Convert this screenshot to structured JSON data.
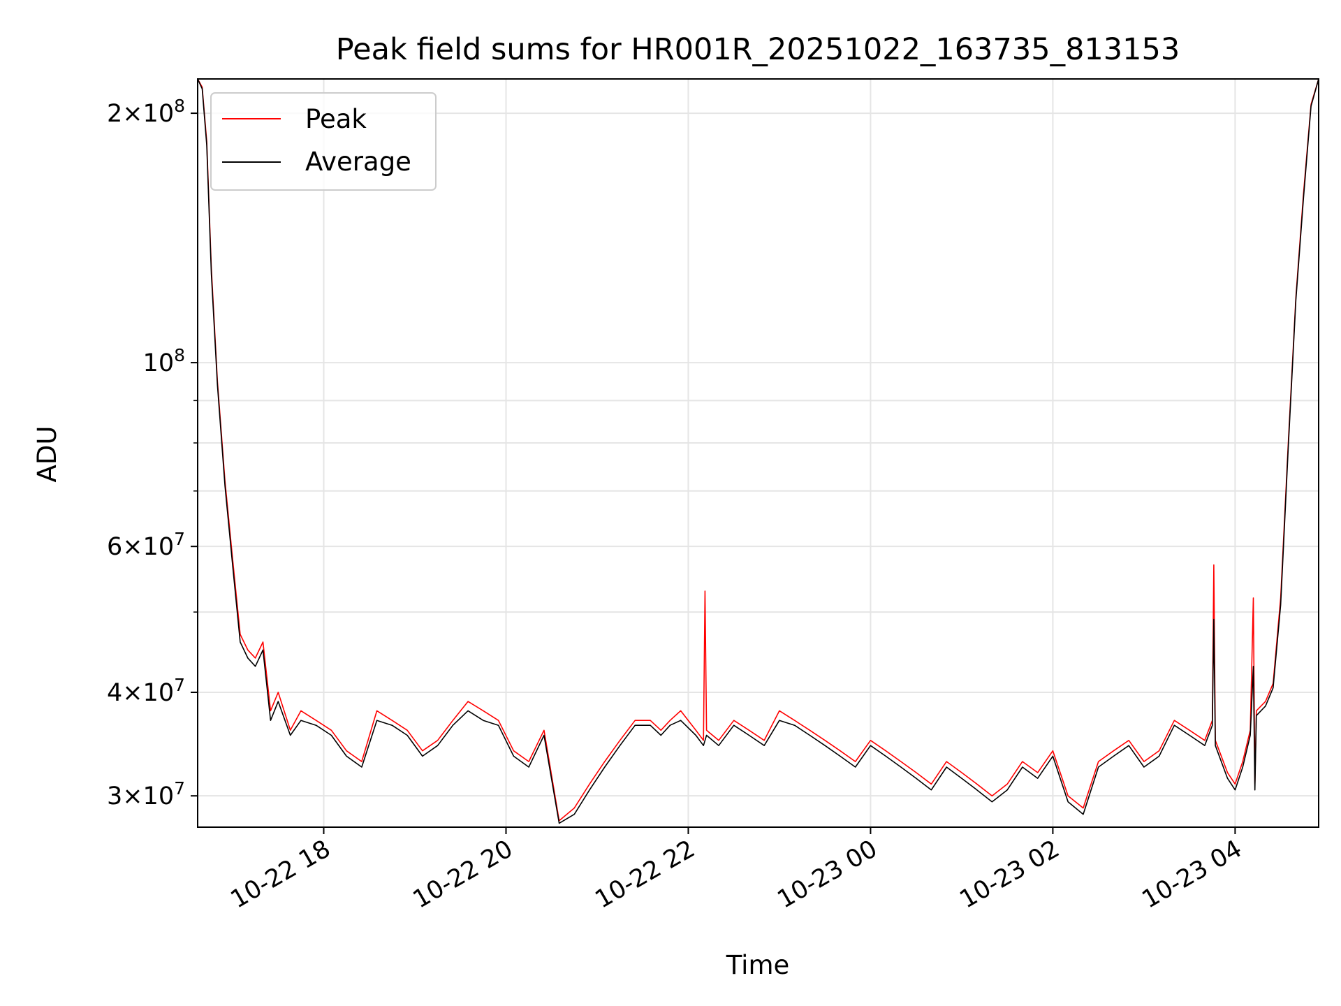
{
  "chart_data": {
    "type": "line",
    "title": "Peak field sums for HR001R_20251022_163735_813153",
    "xlabel": "Time",
    "ylabel": "ADU",
    "yscale": "log",
    "ylim": [
      27500000,
      220000000
    ],
    "xlim": [
      "2025-10-22 16:37",
      "2025-10-23 04:55"
    ],
    "grid": true,
    "legend_position": "top-left",
    "x_ticks": [
      {
        "value": "2025-10-22 18:00",
        "label": "10-22 18"
      },
      {
        "value": "2025-10-22 20:00",
        "label": "10-22 20"
      },
      {
        "value": "2025-10-22 22:00",
        "label": "10-22 22"
      },
      {
        "value": "2025-10-23 00:00",
        "label": "10-23 00"
      },
      {
        "value": "2025-10-23 02:00",
        "label": "10-23 02"
      },
      {
        "value": "2025-10-23 04:00",
        "label": "10-23 04"
      }
    ],
    "y_ticks": [
      {
        "value": 30000000,
        "mant": "3",
        "exp": "7"
      },
      {
        "value": 40000000,
        "mant": "4",
        "exp": "7"
      },
      {
        "value": 60000000,
        "mant": "6",
        "exp": "7"
      },
      {
        "value": 100000000,
        "mant": "",
        "exp": "8"
      },
      {
        "value": 200000000,
        "mant": "2",
        "exp": "8"
      }
    ],
    "series": [
      {
        "name": "Peak",
        "color": "#ff0000",
        "x": [
          "2025-10-22 16:37",
          "2025-10-22 16:40",
          "2025-10-22 16:43",
          "2025-10-22 16:46",
          "2025-10-22 16:50",
          "2025-10-22 16:55",
          "2025-10-22 17:00",
          "2025-10-22 17:05",
          "2025-10-22 17:10",
          "2025-10-22 17:15",
          "2025-10-22 17:20",
          "2025-10-22 17:25",
          "2025-10-22 17:30",
          "2025-10-22 17:38",
          "2025-10-22 17:45",
          "2025-10-22 17:55",
          "2025-10-22 18:05",
          "2025-10-22 18:15",
          "2025-10-22 18:25",
          "2025-10-22 18:35",
          "2025-10-22 18:45",
          "2025-10-22 18:55",
          "2025-10-22 19:05",
          "2025-10-22 19:15",
          "2025-10-22 19:25",
          "2025-10-22 19:35",
          "2025-10-22 19:45",
          "2025-10-22 19:55",
          "2025-10-22 20:05",
          "2025-10-22 20:15",
          "2025-10-22 20:25",
          "2025-10-22 20:35",
          "2025-10-22 20:45",
          "2025-10-22 20:55",
          "2025-10-22 21:05",
          "2025-10-22 21:15",
          "2025-10-22 21:25",
          "2025-10-22 21:35",
          "2025-10-22 21:42",
          "2025-10-22 21:48",
          "2025-10-22 21:55",
          "2025-10-22 22:05",
          "2025-10-22 22:10",
          "2025-10-22 22:11",
          "2025-10-22 22:12",
          "2025-10-22 22:20",
          "2025-10-22 22:30",
          "2025-10-22 22:40",
          "2025-10-22 22:50",
          "2025-10-22 23:00",
          "2025-10-22 23:10",
          "2025-10-22 23:20",
          "2025-10-22 23:30",
          "2025-10-22 23:40",
          "2025-10-22 23:50",
          "2025-10-23 00:00",
          "2025-10-23 00:10",
          "2025-10-23 00:20",
          "2025-10-23 00:30",
          "2025-10-23 00:40",
          "2025-10-23 00:50",
          "2025-10-23 01:00",
          "2025-10-23 01:10",
          "2025-10-23 01:20",
          "2025-10-23 01:30",
          "2025-10-23 01:40",
          "2025-10-23 01:50",
          "2025-10-23 02:00",
          "2025-10-23 02:10",
          "2025-10-23 02:20",
          "2025-10-23 02:30",
          "2025-10-23 02:40",
          "2025-10-23 02:50",
          "2025-10-23 03:00",
          "2025-10-23 03:10",
          "2025-10-23 03:20",
          "2025-10-23 03:30",
          "2025-10-23 03:40",
          "2025-10-23 03:45",
          "2025-10-23 03:46",
          "2025-10-23 03:47",
          "2025-10-23 03:55",
          "2025-10-23 04:00",
          "2025-10-23 04:05",
          "2025-10-23 04:10",
          "2025-10-23 04:12",
          "2025-10-23 04:13",
          "2025-10-23 04:14",
          "2025-10-23 04:20",
          "2025-10-23 04:25",
          "2025-10-23 04:30",
          "2025-10-23 04:35",
          "2025-10-23 04:40",
          "2025-10-23 04:45",
          "2025-10-23 04:50",
          "2025-10-23 04:55"
        ],
        "values": [
          220000000,
          215000000,
          185000000,
          130000000,
          95000000,
          72000000,
          58000000,
          47000000,
          45000000,
          44000000,
          46000000,
          38000000,
          40000000,
          36000000,
          38000000,
          37000000,
          36000000,
          34000000,
          33000000,
          38000000,
          37000000,
          36000000,
          34000000,
          35000000,
          37000000,
          39000000,
          38000000,
          37000000,
          34000000,
          33000000,
          36000000,
          28000000,
          29000000,
          31000000,
          33000000,
          35000000,
          37000000,
          37000000,
          36000000,
          37000000,
          38000000,
          36000000,
          35000000,
          53000000,
          36000000,
          35000000,
          37000000,
          36000000,
          35000000,
          38000000,
          37000000,
          36000000,
          35000000,
          34000000,
          33000000,
          35000000,
          34000000,
          33000000,
          32000000,
          31000000,
          33000000,
          32000000,
          31000000,
          30000000,
          31000000,
          33000000,
          32000000,
          34000000,
          30000000,
          29000000,
          33000000,
          34000000,
          35000000,
          33000000,
          34000000,
          37000000,
          36000000,
          35000000,
          37000000,
          57000000,
          35000000,
          32000000,
          31000000,
          33000000,
          36000000,
          52000000,
          31000000,
          38000000,
          39000000,
          41000000,
          52000000,
          80000000,
          120000000,
          160000000,
          205000000,
          220000000
        ]
      },
      {
        "name": "Average",
        "color": "#000000",
        "x": [
          "2025-10-22 16:37",
          "2025-10-22 16:40",
          "2025-10-22 16:43",
          "2025-10-22 16:46",
          "2025-10-22 16:50",
          "2025-10-22 16:55",
          "2025-10-22 17:00",
          "2025-10-22 17:05",
          "2025-10-22 17:10",
          "2025-10-22 17:15",
          "2025-10-22 17:20",
          "2025-10-22 17:25",
          "2025-10-22 17:30",
          "2025-10-22 17:38",
          "2025-10-22 17:45",
          "2025-10-22 17:55",
          "2025-10-22 18:05",
          "2025-10-22 18:15",
          "2025-10-22 18:25",
          "2025-10-22 18:35",
          "2025-10-22 18:45",
          "2025-10-22 18:55",
          "2025-10-22 19:05",
          "2025-10-22 19:15",
          "2025-10-22 19:25",
          "2025-10-22 19:35",
          "2025-10-22 19:45",
          "2025-10-22 19:55",
          "2025-10-22 20:05",
          "2025-10-22 20:15",
          "2025-10-22 20:25",
          "2025-10-22 20:35",
          "2025-10-22 20:45",
          "2025-10-22 20:55",
          "2025-10-22 21:05",
          "2025-10-22 21:15",
          "2025-10-22 21:25",
          "2025-10-22 21:35",
          "2025-10-22 21:42",
          "2025-10-22 21:48",
          "2025-10-22 21:55",
          "2025-10-22 22:05",
          "2025-10-22 22:10",
          "2025-10-22 22:11",
          "2025-10-22 22:12",
          "2025-10-22 22:20",
          "2025-10-22 22:30",
          "2025-10-22 22:40",
          "2025-10-22 22:50",
          "2025-10-22 23:00",
          "2025-10-22 23:10",
          "2025-10-22 23:20",
          "2025-10-22 23:30",
          "2025-10-22 23:40",
          "2025-10-22 23:50",
          "2025-10-23 00:00",
          "2025-10-23 00:10",
          "2025-10-23 00:20",
          "2025-10-23 00:30",
          "2025-10-23 00:40",
          "2025-10-23 00:50",
          "2025-10-23 01:00",
          "2025-10-23 01:10",
          "2025-10-23 01:20",
          "2025-10-23 01:30",
          "2025-10-23 01:40",
          "2025-10-23 01:50",
          "2025-10-23 02:00",
          "2025-10-23 02:10",
          "2025-10-23 02:20",
          "2025-10-23 02:30",
          "2025-10-23 02:40",
          "2025-10-23 02:50",
          "2025-10-23 03:00",
          "2025-10-23 03:10",
          "2025-10-23 03:20",
          "2025-10-23 03:30",
          "2025-10-23 03:40",
          "2025-10-23 03:45",
          "2025-10-23 03:46",
          "2025-10-23 03:47",
          "2025-10-23 03:55",
          "2025-10-23 04:00",
          "2025-10-23 04:05",
          "2025-10-23 04:10",
          "2025-10-23 04:12",
          "2025-10-23 04:13",
          "2025-10-23 04:14",
          "2025-10-23 04:20",
          "2025-10-23 04:25",
          "2025-10-23 04:30",
          "2025-10-23 04:35",
          "2025-10-23 04:40",
          "2025-10-23 04:45",
          "2025-10-23 04:50",
          "2025-10-23 04:55"
        ],
        "values": [
          220000000,
          214000000,
          183000000,
          128000000,
          94000000,
          71000000,
          57000000,
          46000000,
          44000000,
          43000000,
          45000000,
          37000000,
          39000000,
          35500000,
          37000000,
          36500000,
          35500000,
          33500000,
          32500000,
          37000000,
          36500000,
          35500000,
          33500000,
          34500000,
          36500000,
          38000000,
          37000000,
          36500000,
          33500000,
          32500000,
          35500000,
          27800000,
          28500000,
          30500000,
          32500000,
          34500000,
          36500000,
          36500000,
          35500000,
          36500000,
          37000000,
          35500000,
          34500000,
          35000000,
          35500000,
          34500000,
          36500000,
          35500000,
          34500000,
          37000000,
          36500000,
          35500000,
          34500000,
          33500000,
          32500000,
          34500000,
          33500000,
          32500000,
          31500000,
          30500000,
          32500000,
          31500000,
          30500000,
          29500000,
          30500000,
          32500000,
          31500000,
          33500000,
          29500000,
          28500000,
          32500000,
          33500000,
          34500000,
          32500000,
          33500000,
          36500000,
          35500000,
          34500000,
          36500000,
          49000000,
          34500000,
          31500000,
          30500000,
          32500000,
          35500000,
          43000000,
          30500000,
          37500000,
          38500000,
          40500000,
          51000000,
          79000000,
          119000000,
          158000000,
          204000000,
          220000000
        ]
      }
    ]
  }
}
